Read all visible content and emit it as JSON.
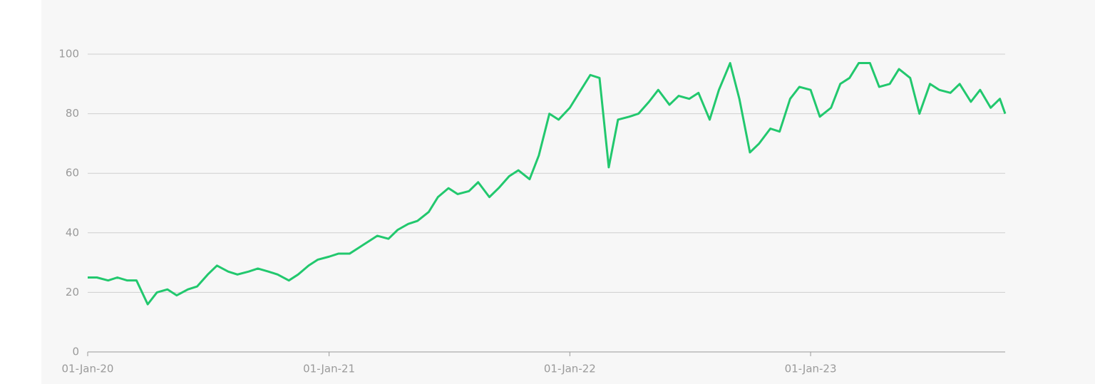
{
  "chart_data": {
    "type": "line",
    "x": [
      "01-Jan-20",
      "15-Jan-20",
      "01-Feb-20",
      "15-Feb-20",
      "01-Mar-20",
      "15-Mar-20",
      "01-Apr-20",
      "15-Apr-20",
      "01-May-20",
      "15-May-20",
      "01-Jun-20",
      "15-Jun-20",
      "01-Jul-20",
      "15-Jul-20",
      "01-Aug-20",
      "15-Aug-20",
      "01-Sep-20",
      "15-Sep-20",
      "01-Oct-20",
      "15-Oct-20",
      "01-Nov-20",
      "15-Nov-20",
      "01-Dec-20",
      "15-Dec-20",
      "01-Jan-21",
      "15-Jan-21",
      "01-Feb-21",
      "15-Feb-21",
      "01-Mar-21",
      "15-Mar-21",
      "01-Apr-21",
      "15-Apr-21",
      "01-May-21",
      "15-May-21",
      "01-Jun-21",
      "15-Jun-21",
      "01-Jul-21",
      "15-Jul-21",
      "01-Aug-21",
      "15-Aug-21",
      "01-Sep-21",
      "15-Sep-21",
      "01-Oct-21",
      "15-Oct-21",
      "01-Nov-21",
      "15-Nov-21",
      "01-Dec-21",
      "15-Dec-21",
      "01-Jan-22",
      "15-Jan-22",
      "01-Feb-22",
      "15-Feb-22",
      "01-Mar-22",
      "15-Mar-22",
      "01-Apr-22",
      "15-Apr-22",
      "01-May-22",
      "15-May-22",
      "01-Jun-22",
      "15-Jun-22",
      "01-Jul-22",
      "15-Jul-22",
      "01-Aug-22",
      "15-Aug-22",
      "01-Sep-22",
      "15-Sep-22",
      "01-Oct-22",
      "15-Oct-22",
      "01-Nov-22",
      "15-Nov-22",
      "01-Dec-22",
      "15-Dec-22",
      "01-Jan-23",
      "15-Jan-23",
      "01-Feb-23",
      "15-Feb-23",
      "01-Mar-23",
      "15-Mar-23",
      "01-Apr-23",
      "15-Apr-23",
      "01-May-23",
      "15-May-23",
      "01-Jun-23",
      "15-Jun-23",
      "01-Jul-23",
      "15-Jul-23",
      "01-Aug-23",
      "15-Aug-23",
      "01-Sep-23",
      "15-Sep-23",
      "01-Oct-23",
      "15-Oct-23",
      "23-Oct-23"
    ],
    "values": [
      25,
      25,
      24,
      25,
      24,
      24,
      16,
      20,
      21,
      19,
      21,
      22,
      26,
      29,
      27,
      26,
      27,
      28,
      27,
      26,
      24,
      26,
      29,
      31,
      32,
      33,
      33,
      35,
      37,
      39,
      38,
      41,
      43,
      44,
      47,
      52,
      55,
      53,
      54,
      57,
      52,
      55,
      59,
      61,
      58,
      66,
      80,
      78,
      82,
      87,
      93,
      92,
      62,
      78,
      79,
      80,
      84,
      88,
      83,
      86,
      85,
      87,
      78,
      88,
      97,
      85,
      67,
      70,
      75,
      74,
      85,
      89,
      88,
      79,
      82,
      90,
      92,
      97,
      97,
      89,
      90,
      95,
      92,
      80,
      90,
      88,
      87,
      90,
      84,
      88,
      82,
      85,
      80
    ],
    "color": "#22c86e",
    "xlim": [
      "01-Jan-20",
      "23-Oct-23"
    ],
    "xticks": [
      "01-Jan-20",
      "01-Jan-21",
      "01-Jan-22",
      "01-Jan-23"
    ],
    "ylim": [
      0,
      100
    ],
    "yticks": [
      0,
      20,
      40,
      60,
      80,
      100
    ],
    "grid": true
  }
}
